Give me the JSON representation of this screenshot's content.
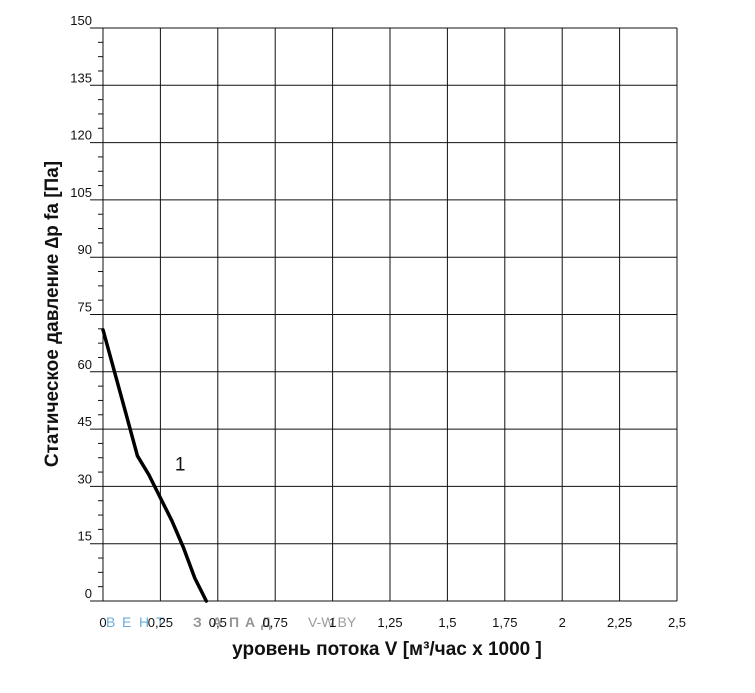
{
  "chart_data": {
    "type": "line",
    "xlabel": "уровень потока  V [м³/час x 1000 ]",
    "ylabel": "Статическое давление  ∆p fa [Па]",
    "xlim": [
      0,
      2.5
    ],
    "ylim": [
      0,
      150
    ],
    "grid": true,
    "x_ticks": [
      "0",
      "0,25",
      "0,5",
      "0,75",
      "1",
      "1,25",
      "1,5",
      "1,75",
      "2",
      "2,25",
      "2,5"
    ],
    "y_ticks": [
      "0",
      "15",
      "30",
      "45",
      "60",
      "75",
      "90",
      "105",
      "120",
      "135",
      "150"
    ],
    "series": [
      {
        "name": "1",
        "x": [
          0,
          0.05,
          0.1,
          0.15,
          0.2,
          0.25,
          0.3,
          0.35,
          0.4,
          0.45
        ],
        "y": [
          71,
          60,
          49,
          38,
          33,
          27,
          21,
          14,
          6,
          0
        ]
      }
    ],
    "annotations": [
      {
        "text": "1",
        "x": 0.3,
        "y": 36
      }
    ]
  },
  "watermark": {
    "left_letters": [
      "В",
      "Е",
      "Н",
      "Т"
    ],
    "middle_letters": [
      "З",
      "А",
      "П",
      "А",
      "Д"
    ],
    "right_text": "V-W.BY"
  },
  "colors": {
    "grid": "#111111",
    "curve": "#000000",
    "watermark_blue": "#4f9fd4",
    "watermark_gray": "#8a8a8a"
  }
}
